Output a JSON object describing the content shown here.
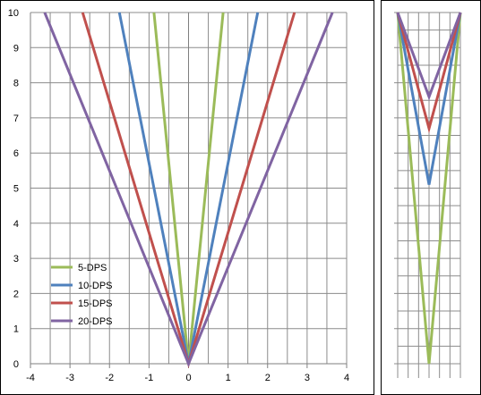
{
  "chart_data": [
    {
      "type": "line",
      "title": "",
      "xlabel": "",
      "ylabel": "",
      "xlim": [
        -4,
        4
      ],
      "ylim": [
        0,
        10
      ],
      "x_ticks": [
        "-4",
        "-3",
        "-2",
        "-1",
        "0",
        "1",
        "2",
        "3",
        "4"
      ],
      "y_ticks": [
        "0",
        "1",
        "2",
        "3",
        "4",
        "5",
        "6",
        "7",
        "8",
        "9",
        "10"
      ],
      "grid": true,
      "legend_position": "bottom-left",
      "series": [
        {
          "name": "5-DPS",
          "color": "#9bbb59",
          "x": [
            -0.875,
            0,
            0.875
          ],
          "y": [
            10,
            0,
            10
          ]
        },
        {
          "name": "10-DPS",
          "color": "#4f81bd",
          "x": [
            -1.75,
            0,
            1.75
          ],
          "y": [
            10,
            0,
            10
          ]
        },
        {
          "name": "15-DPS",
          "color": "#c0504d",
          "x": [
            -2.68,
            0,
            2.68
          ],
          "y": [
            10,
            0,
            10
          ]
        },
        {
          "name": "20-DPS",
          "color": "#8064a2",
          "x": [
            -3.64,
            0,
            3.64
          ],
          "y": [
            10,
            0,
            10
          ]
        }
      ]
    },
    {
      "type": "line",
      "title": "",
      "xlim": [
        -1,
        1
      ],
      "ylim": [
        0,
        10
      ],
      "grid": true,
      "series": [
        {
          "name": "5-DPS",
          "color": "#9bbb59",
          "x": [
            -1,
            0,
            1
          ],
          "y": [
            10,
            0,
            10
          ]
        },
        {
          "name": "10-DPS",
          "color": "#4f81bd",
          "x": [
            -1,
            0,
            1
          ],
          "y": [
            10,
            5.1,
            10
          ]
        },
        {
          "name": "15-DPS",
          "color": "#c0504d",
          "x": [
            -1,
            0,
            1
          ],
          "y": [
            10,
            6.7,
            10
          ]
        },
        {
          "name": "20-DPS",
          "color": "#8064a2",
          "x": [
            -1,
            0,
            1
          ],
          "y": [
            10,
            7.6,
            10
          ]
        }
      ]
    }
  ]
}
